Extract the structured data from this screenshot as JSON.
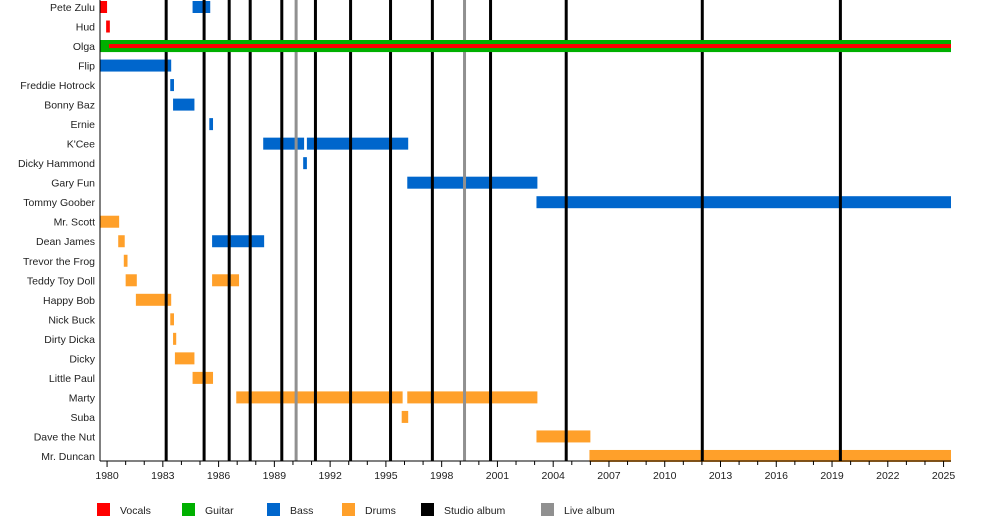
{
  "chart_data": {
    "type": "timeline",
    "title": "",
    "xlabel": "",
    "ylabel": "",
    "xlim": [
      1979.62,
      2025.4
    ],
    "x_ticks": [
      1980,
      1983,
      1986,
      1989,
      1992,
      1995,
      1998,
      2001,
      2004,
      2007,
      2010,
      2013,
      2016,
      2019,
      2022,
      2025
    ],
    "grid": false,
    "legend_position": "bottom",
    "colors": {
      "Vocals": "#ff0000",
      "Guitar": "#00b000",
      "Bass": "#0066cc",
      "Drums": "#ffa02a",
      "Studio album": "#000000",
      "Live album": "#909090"
    },
    "legend": [
      "Vocals",
      "Guitar",
      "Bass",
      "Drums",
      "Studio album",
      "Live album"
    ],
    "members": [
      {
        "name": "Pete Zulu",
        "periods": [
          {
            "role": "Vocals",
            "from": 1979.62,
            "to": 1980.0
          },
          {
            "role": "Bass",
            "from": 1984.6,
            "to": 1985.55
          }
        ]
      },
      {
        "name": "Hud",
        "periods": [
          {
            "role": "Vocals",
            "from": 1979.95,
            "to": 1980.15
          }
        ]
      },
      {
        "name": "Olga",
        "periods": [
          {
            "role": "Guitar",
            "from": 1979.62,
            "to": 2025.4
          },
          {
            "role": "Vocals",
            "from": 1980.1,
            "to": 2025.4,
            "inner": true
          }
        ]
      },
      {
        "name": "Flip",
        "periods": [
          {
            "role": "Bass",
            "from": 1979.62,
            "to": 1983.45
          }
        ]
      },
      {
        "name": "Freddie Hotrock",
        "periods": [
          {
            "role": "Bass",
            "from": 1983.4,
            "to": 1983.6
          }
        ]
      },
      {
        "name": "Bonny Baz",
        "periods": [
          {
            "role": "Bass",
            "from": 1983.55,
            "to": 1984.7
          }
        ]
      },
      {
        "name": "Ernie",
        "periods": [
          {
            "role": "Bass",
            "from": 1985.5,
            "to": 1985.7
          }
        ]
      },
      {
        "name": "K'Cee",
        "periods": [
          {
            "role": "Bass",
            "from": 1988.4,
            "to": 1990.6
          },
          {
            "role": "Bass",
            "from": 1990.75,
            "to": 1996.2
          }
        ]
      },
      {
        "name": "Dicky Hammond",
        "periods": [
          {
            "role": "Bass",
            "from": 1990.55,
            "to": 1990.75
          }
        ]
      },
      {
        "name": "Gary Fun",
        "periods": [
          {
            "role": "Bass",
            "from": 1996.15,
            "to": 2003.15
          }
        ]
      },
      {
        "name": "Tommy Goober",
        "periods": [
          {
            "role": "Bass",
            "from": 2003.1,
            "to": 2025.4
          }
        ]
      },
      {
        "name": "Mr. Scott",
        "periods": [
          {
            "role": "Drums",
            "from": 1979.62,
            "to": 1980.65
          }
        ]
      },
      {
        "name": "Dean James",
        "periods": [
          {
            "role": "Drums",
            "from": 1980.6,
            "to": 1980.95
          },
          {
            "role": "Bass",
            "from": 1985.65,
            "to": 1988.45
          }
        ]
      },
      {
        "name": "Trevor the Frog",
        "periods": [
          {
            "role": "Drums",
            "from": 1980.9,
            "to": 1981.1
          }
        ]
      },
      {
        "name": "Teddy Toy Doll",
        "periods": [
          {
            "role": "Drums",
            "from": 1981.0,
            "to": 1981.6
          },
          {
            "role": "Drums",
            "from": 1985.65,
            "to": 1987.1
          }
        ]
      },
      {
        "name": "Happy Bob",
        "periods": [
          {
            "role": "Drums",
            "from": 1981.55,
            "to": 1983.45
          }
        ]
      },
      {
        "name": "Nick Buck",
        "periods": [
          {
            "role": "Drums",
            "from": 1983.4,
            "to": 1983.6
          }
        ]
      },
      {
        "name": "Dirty Dicka",
        "periods": [
          {
            "role": "Drums",
            "from": 1983.55,
            "to": 1983.72
          }
        ]
      },
      {
        "name": "Dicky",
        "periods": [
          {
            "role": "Drums",
            "from": 1983.65,
            "to": 1984.7
          }
        ]
      },
      {
        "name": "Little Paul",
        "periods": [
          {
            "role": "Drums",
            "from": 1984.6,
            "to": 1985.7
          }
        ]
      },
      {
        "name": "Marty",
        "periods": [
          {
            "role": "Drums",
            "from": 1986.95,
            "to": 1995.9
          },
          {
            "role": "Drums",
            "from": 1996.15,
            "to": 2003.15
          }
        ]
      },
      {
        "name": "Suba",
        "periods": [
          {
            "role": "Drums",
            "from": 1995.85,
            "to": 1996.2
          }
        ]
      },
      {
        "name": "Dave the Nut",
        "periods": [
          {
            "role": "Drums",
            "from": 2003.1,
            "to": 2006.0
          }
        ]
      },
      {
        "name": "Mr. Duncan",
        "periods": [
          {
            "role": "Drums",
            "from": 2005.95,
            "to": 2025.4
          }
        ]
      }
    ],
    "studio_albums": [
      1983.18,
      1985.22,
      1986.57,
      1987.7,
      1989.4,
      1991.21,
      1993.1,
      1995.25,
      1997.5,
      2000.63,
      2004.7,
      2012.02,
      2019.45
    ],
    "live_albums": [
      1990.17,
      1999.23
    ]
  }
}
